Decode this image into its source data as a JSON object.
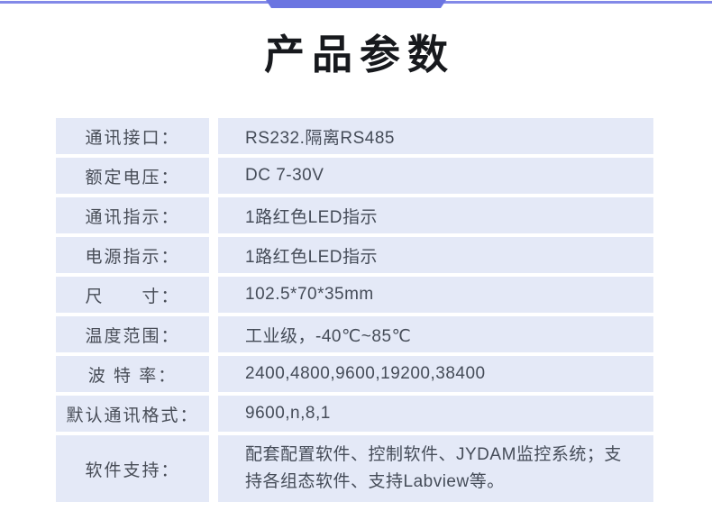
{
  "header": {
    "title": "产品参数"
  },
  "colors": {
    "accent_bar": "#6b75e1",
    "accent_line": "#8289e8",
    "cell_background": "#e4e9f7",
    "label_text": "#484d57",
    "value_text": "#454c58",
    "title_text": "#17191d"
  },
  "table": {
    "rows": [
      {
        "label": "通讯接口：",
        "value": "RS232.隔离RS485"
      },
      {
        "label": "额定电压：",
        "value": "DC 7-30V"
      },
      {
        "label": "通讯指示：",
        "value": "1路红色LED指示"
      },
      {
        "label": "电源指示：",
        "value": "1路红色LED指示"
      },
      {
        "label": "尺　　寸：",
        "value": "102.5*70*35mm"
      },
      {
        "label": "温度范围：",
        "value": "工业级，-40℃~85℃"
      },
      {
        "label": "波 特 率：",
        "value": "2400,4800,9600,19200,38400"
      },
      {
        "label": "默认通讯格式：",
        "value": "9600,n,8,1"
      },
      {
        "label": "软件支持：",
        "value": "配套配置软件、控制软件、JYDAM监控系统；支持各组态软件、支持Labview等。"
      }
    ]
  }
}
